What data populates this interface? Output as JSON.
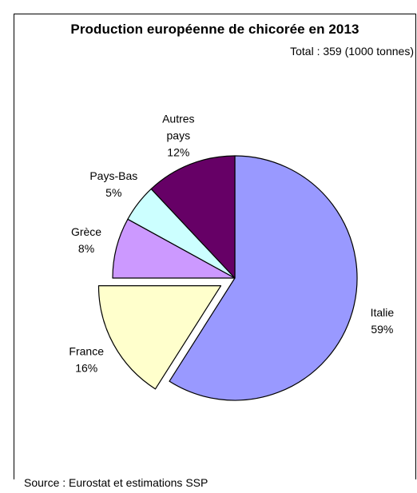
{
  "chart_data": {
    "type": "pie",
    "title": "Production européenne de chicorée en 2013",
    "subtitle": "Total : 359 (1000 tonnes)",
    "source": "Source : Eurostat et estimations SSP",
    "slices": [
      {
        "label_lines": [
          "Italie"
        ],
        "value": 59,
        "value_label": "59%",
        "color": "#9999ff",
        "exploded": false
      },
      {
        "label_lines": [
          "France"
        ],
        "value": 16,
        "value_label": "16%",
        "color": "#ffffcc",
        "exploded": true
      },
      {
        "label_lines": [
          "Grèce"
        ],
        "value": 8,
        "value_label": "8%",
        "color": "#cc99ff",
        "exploded": false
      },
      {
        "label_lines": [
          "Pays-Bas"
        ],
        "value": 5,
        "value_label": "5%",
        "color": "#ccffff",
        "exploded": false
      },
      {
        "label_lines": [
          "Autres",
          "pays"
        ],
        "value": 12,
        "value_label": "12%",
        "color": "#660066",
        "exploded": false
      }
    ],
    "start_angle": "12 o'clock",
    "direction": "clockwise",
    "legend": "none",
    "slice_border_color": "#000000"
  }
}
